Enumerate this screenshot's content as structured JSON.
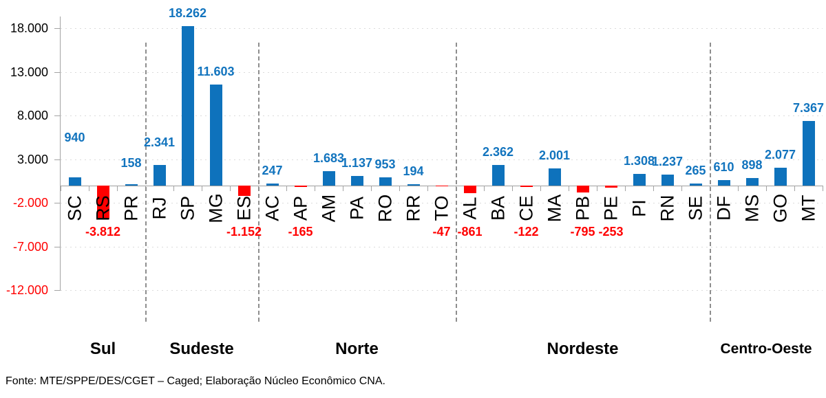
{
  "page": {
    "background": "#FFFFFF"
  },
  "footer": {
    "text": "Fonte: MTE/SPPE/DES/CGET – Caged; Elaboração Núcleo Econômico CNA."
  },
  "chart_data": {
    "type": "bar",
    "title": "",
    "categories": [
      "SC",
      "RS",
      "PR",
      "RJ",
      "SP",
      "MG",
      "ES",
      "AC",
      "AP",
      "AM",
      "PA",
      "RO",
      "RR",
      "TO",
      "AL",
      "BA",
      "CE",
      "MA",
      "PB",
      "PE",
      "PI",
      "RN",
      "SE",
      "DF",
      "MS",
      "GO",
      "MT"
    ],
    "values": [
      940,
      -3812,
      158,
      2341,
      18262,
      11603,
      -1152,
      247,
      -165,
      1683,
      1137,
      953,
      194,
      -47,
      -861,
      2362,
      -122,
      2001,
      -795,
      -253,
      1308,
      1237,
      265,
      610,
      898,
      2077,
      7367
    ],
    "value_labels": [
      "940",
      "-3.812",
      "158",
      "2.341",
      "18.262",
      "11.603",
      "-1.152",
      "247",
      "-165",
      "1.683",
      "1.137",
      "953",
      "194",
      "-47",
      "-861",
      "2.362",
      "-122",
      "2.001",
      "-795",
      "-253",
      "1.308",
      "1.237",
      "265",
      "610",
      "898",
      "2.077",
      "7.367"
    ],
    "groups": [
      {
        "label": "Sul",
        "count": 3
      },
      {
        "label": "Sudeste",
        "count": 4
      },
      {
        "label": "Norte",
        "count": 7
      },
      {
        "label": "Nordeste",
        "count": 9
      },
      {
        "label": "Centro-Oeste",
        "count": 4
      }
    ],
    "y_tick_labels": [
      "18.000",
      "13.000",
      "8.000",
      "3.000",
      "-2.000",
      "-7.000",
      "-12.000"
    ],
    "y_tick_values": [
      18000,
      13000,
      8000,
      3000,
      -2000,
      -7000,
      -12000
    ],
    "ylim": [
      -12000,
      19400
    ],
    "grid": true,
    "legend": "none",
    "colors": {
      "positive": "#0E72BC",
      "negative": "#FF0000",
      "value_label_positive": "#1274BE",
      "value_label_negative": "#FF0000",
      "y_label_positive": "#000000",
      "y_label_negative": "#FF0000",
      "axis": "#A3A3A3",
      "gridline": "#DBDBDB",
      "separator": "#8E8E8E",
      "state_label": "#000000",
      "region_label": "#000000"
    }
  }
}
